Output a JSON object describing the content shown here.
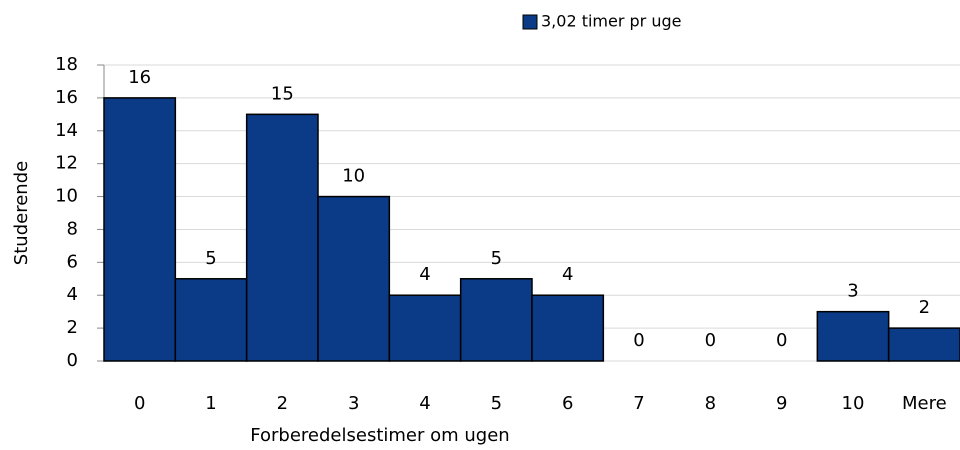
{
  "chart_data": {
    "type": "bar",
    "categories": [
      "0",
      "1",
      "2",
      "3",
      "4",
      "5",
      "6",
      "7",
      "8",
      "9",
      "10",
      "Mere"
    ],
    "series": [
      {
        "name": "3,02 timer pr uge",
        "color": "#0b3a86",
        "values": [
          16,
          5,
          15,
          10,
          4,
          5,
          4,
          0,
          0,
          0,
          3,
          2
        ]
      }
    ],
    "x_label": "Forberedelsestimer om ugen",
    "y_label": "Studerende",
    "ylim": [
      0,
      18
    ],
    "yticks": [
      0,
      2,
      4,
      6,
      8,
      10,
      12,
      14,
      16,
      18
    ],
    "grid": true,
    "legend": "top-right"
  }
}
